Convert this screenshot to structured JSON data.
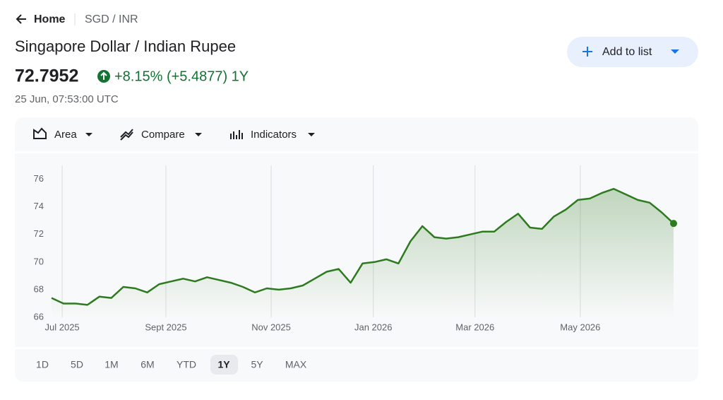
{
  "header": {
    "back": "Home",
    "breadcrumb": "SGD / INR"
  },
  "title": "Singapore Dollar / Indian Rupee",
  "price": "72.7952",
  "change": "+8.15% (+5.4877) 1Y",
  "timestamp": "25 Jun, 07:53:00 UTC",
  "add_button": "Add to list",
  "toolbar": [
    "Area",
    "Compare",
    "Indicators"
  ],
  "ranges": [
    "1D",
    "5D",
    "1M",
    "6M",
    "YTD",
    "1Y",
    "5Y",
    "MAX"
  ],
  "selected_range": 5,
  "chart_data": {
    "type": "line",
    "color": "#2d7a1f",
    "grid": "x",
    "last_marker": true,
    "values": [
      67.4,
      67.0,
      67.0,
      66.9,
      67.5,
      67.4,
      68.2,
      68.1,
      67.8,
      68.4,
      68.6,
      68.8,
      68.6,
      68.9,
      68.7,
      68.5,
      68.2,
      67.8,
      68.1,
      68.0,
      68.1,
      68.3,
      68.8,
      69.3,
      69.5,
      68.5,
      69.9,
      70.0,
      70.2,
      69.9,
      71.5,
      72.6,
      71.8,
      71.7,
      71.8,
      72.0,
      72.2,
      72.2,
      72.9,
      73.5,
      72.5,
      72.4,
      73.3,
      73.8,
      74.5,
      74.6,
      75.0,
      75.3,
      74.9,
      74.5,
      74.3,
      73.6,
      72.7952
    ],
    "xlim": [
      0,
      52
    ],
    "xticks": [
      {
        "value": 0.89,
        "label": "Jul 2025"
      },
      {
        "value": 9.56,
        "label": "Sept 2025"
      },
      {
        "value": 18.36,
        "label": "Nov 2025"
      },
      {
        "value": 26.9,
        "label": "Jan 2026"
      },
      {
        "value": 35.4,
        "label": "Mar 2026"
      },
      {
        "value": 44.2,
        "label": "May 2026"
      }
    ],
    "ylim": [
      66,
      77
    ],
    "yticks": [
      66,
      68,
      70,
      72,
      74,
      76
    ]
  }
}
